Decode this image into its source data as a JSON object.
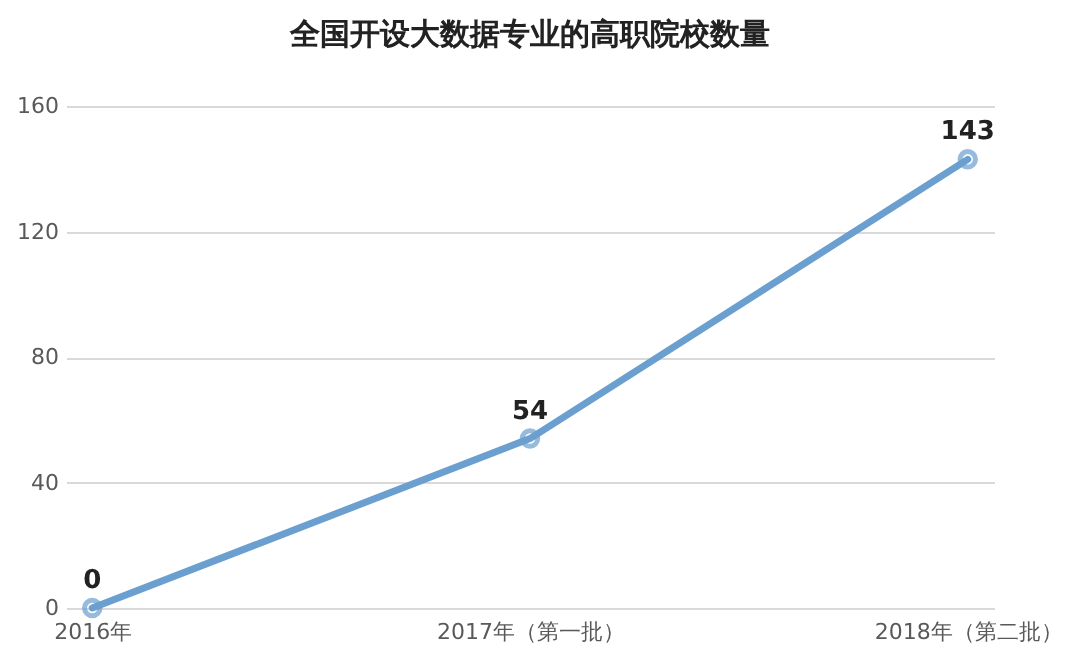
{
  "chart_data": {
    "type": "line",
    "title": "全国开设大数据专业的高职院校数量",
    "categories": [
      "2016年",
      "2017年（第一批）",
      "2018年（第二批）"
    ],
    "series": [
      {
        "color": "#6a9fcf",
        "values": [
          0,
          54,
          143
        ]
      }
    ],
    "ylim": [
      0,
      160
    ],
    "yticks": [
      0,
      40,
      80,
      120,
      160
    ],
    "grid": "y",
    "marker": "circle",
    "line_style": "solid",
    "data_labels": true
  }
}
